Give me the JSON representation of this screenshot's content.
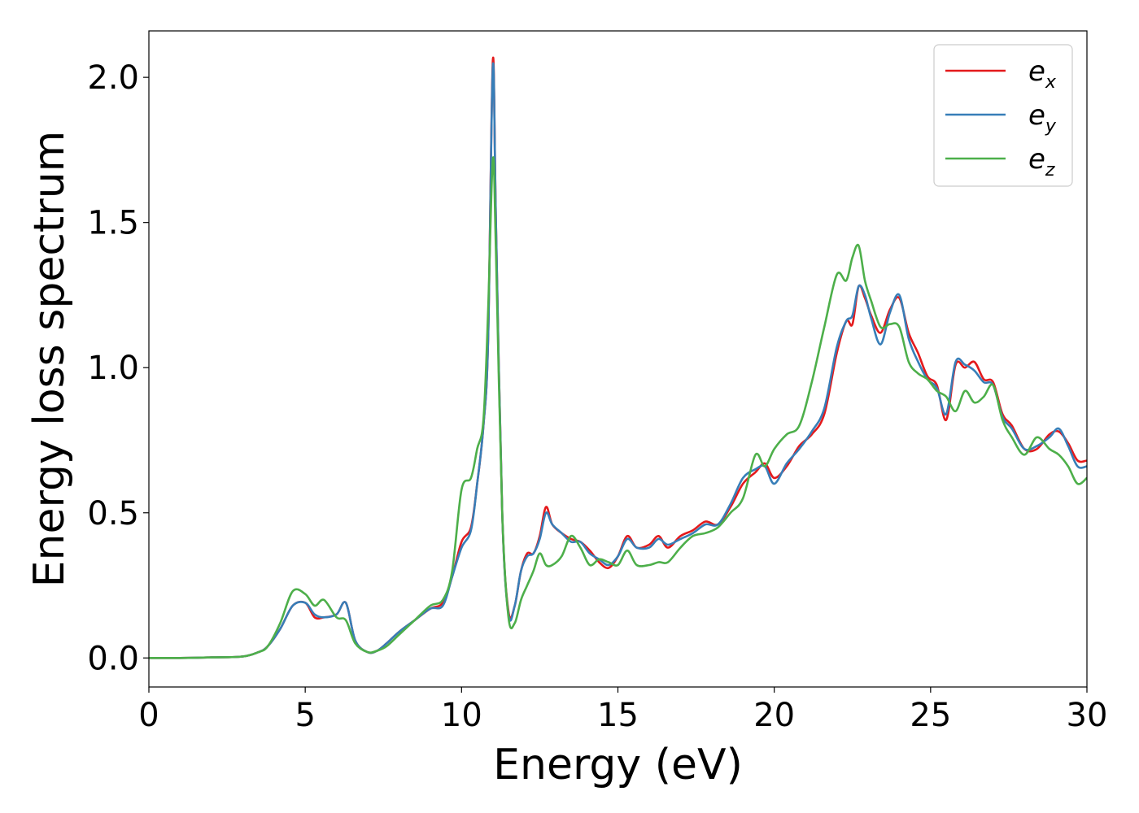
{
  "chart_data": {
    "type": "line",
    "xlabel": "Energy (eV)",
    "ylabel": "Energy loss spectrum",
    "xlim": [
      0,
      30
    ],
    "ylim": [
      -0.1,
      2.16
    ],
    "xticks": [
      0,
      5,
      10,
      15,
      20,
      25,
      30
    ],
    "xtick_labels": [
      "0",
      "5",
      "10",
      "15",
      "20",
      "25",
      "30"
    ],
    "yticks": [
      0.0,
      0.5,
      1.0,
      1.5,
      2.0
    ],
    "ytick_labels": [
      "0.0",
      "0.5",
      "1.0",
      "1.5",
      "2.0"
    ],
    "grid": false,
    "legend_position": "top-right",
    "series": [
      {
        "name": "e_x",
        "legend_base": "e",
        "legend_sub": "x",
        "color": "#e41a1c",
        "x": [
          0,
          1,
          2,
          3,
          3.5,
          3.8,
          4.2,
          4.6,
          5.0,
          5.3,
          5.6,
          6.0,
          6.3,
          6.6,
          7.0,
          7.3,
          7.6,
          8.0,
          8.5,
          9.0,
          9.4,
          9.7,
          10.0,
          10.3,
          10.5,
          10.7,
          10.85,
          11.0,
          11.1,
          11.3,
          11.5,
          11.7,
          11.9,
          12.1,
          12.3,
          12.5,
          12.7,
          12.9,
          13.2,
          13.5,
          13.8,
          14.1,
          14.4,
          14.7,
          15.0,
          15.3,
          15.6,
          16.0,
          16.3,
          16.6,
          17.0,
          17.4,
          17.8,
          18.2,
          18.6,
          19.0,
          19.4,
          19.7,
          20.0,
          20.4,
          20.8,
          21.2,
          21.6,
          22.0,
          22.3,
          22.5,
          22.7,
          22.9,
          23.1,
          23.4,
          23.7,
          24.0,
          24.3,
          24.6,
          24.9,
          25.2,
          25.5,
          25.8,
          26.1,
          26.4,
          26.7,
          27.0,
          27.3,
          27.6,
          28.0,
          28.4,
          28.8,
          29.1,
          29.4,
          29.7,
          30.0
        ],
        "values": [
          0,
          0,
          0.002,
          0.005,
          0.02,
          0.04,
          0.1,
          0.18,
          0.19,
          0.14,
          0.14,
          0.15,
          0.19,
          0.06,
          0.02,
          0.025,
          0.05,
          0.09,
          0.13,
          0.17,
          0.19,
          0.28,
          0.4,
          0.45,
          0.6,
          0.8,
          1.1,
          2.06,
          1.5,
          0.5,
          0.16,
          0.18,
          0.3,
          0.36,
          0.36,
          0.42,
          0.52,
          0.46,
          0.43,
          0.41,
          0.4,
          0.37,
          0.33,
          0.31,
          0.35,
          0.42,
          0.38,
          0.39,
          0.42,
          0.38,
          0.42,
          0.44,
          0.47,
          0.46,
          0.52,
          0.6,
          0.64,
          0.67,
          0.62,
          0.66,
          0.73,
          0.77,
          0.84,
          1.05,
          1.16,
          1.15,
          1.28,
          1.24,
          1.18,
          1.12,
          1.2,
          1.24,
          1.12,
          1.05,
          0.97,
          0.94,
          0.82,
          1.01,
          1.0,
          1.02,
          0.96,
          0.95,
          0.84,
          0.8,
          0.72,
          0.72,
          0.77,
          0.78,
          0.74,
          0.68,
          0.68
        ]
      },
      {
        "name": "e_y",
        "legend_base": "e",
        "legend_sub": "y",
        "color": "#377eb8",
        "x": [
          0,
          1,
          2,
          3,
          3.5,
          3.8,
          4.2,
          4.6,
          5.0,
          5.3,
          5.6,
          6.0,
          6.3,
          6.6,
          7.0,
          7.3,
          7.6,
          8.0,
          8.5,
          9.0,
          9.4,
          9.7,
          10.0,
          10.3,
          10.5,
          10.7,
          10.85,
          11.0,
          11.1,
          11.3,
          11.5,
          11.7,
          11.9,
          12.1,
          12.3,
          12.5,
          12.7,
          12.9,
          13.2,
          13.5,
          13.8,
          14.1,
          14.4,
          14.7,
          15.0,
          15.3,
          15.6,
          16.0,
          16.3,
          16.6,
          17.0,
          17.4,
          17.8,
          18.2,
          18.6,
          19.0,
          19.4,
          19.7,
          20.0,
          20.4,
          20.8,
          21.2,
          21.6,
          22.0,
          22.3,
          22.5,
          22.7,
          22.9,
          23.1,
          23.4,
          23.7,
          24.0,
          24.3,
          24.6,
          24.9,
          25.2,
          25.5,
          25.8,
          26.1,
          26.4,
          26.7,
          27.0,
          27.3,
          27.6,
          28.0,
          28.4,
          28.8,
          29.1,
          29.4,
          29.7,
          30.0
        ],
        "values": [
          0,
          0,
          0.002,
          0.005,
          0.02,
          0.04,
          0.1,
          0.18,
          0.19,
          0.15,
          0.14,
          0.15,
          0.19,
          0.06,
          0.02,
          0.025,
          0.05,
          0.09,
          0.13,
          0.17,
          0.18,
          0.28,
          0.38,
          0.44,
          0.6,
          0.8,
          1.1,
          2.04,
          1.5,
          0.5,
          0.15,
          0.18,
          0.3,
          0.35,
          0.36,
          0.41,
          0.5,
          0.46,
          0.43,
          0.4,
          0.4,
          0.36,
          0.34,
          0.32,
          0.35,
          0.41,
          0.38,
          0.38,
          0.41,
          0.39,
          0.41,
          0.43,
          0.46,
          0.46,
          0.53,
          0.62,
          0.65,
          0.66,
          0.6,
          0.67,
          0.72,
          0.78,
          0.86,
          1.07,
          1.16,
          1.18,
          1.28,
          1.25,
          1.17,
          1.08,
          1.19,
          1.25,
          1.1,
          1.02,
          0.96,
          0.93,
          0.84,
          1.02,
          1.01,
          0.99,
          0.95,
          0.94,
          0.83,
          0.79,
          0.72,
          0.73,
          0.76,
          0.79,
          0.73,
          0.66,
          0.66
        ]
      },
      {
        "name": "e_z",
        "legend_base": "e",
        "legend_sub": "z",
        "color": "#4daf4a",
        "x": [
          0,
          1,
          2,
          3,
          3.5,
          3.8,
          4.2,
          4.6,
          5.0,
          5.3,
          5.6,
          6.0,
          6.3,
          6.6,
          7.0,
          7.3,
          7.6,
          8.0,
          8.5,
          9.0,
          9.4,
          9.7,
          10.0,
          10.3,
          10.5,
          10.7,
          10.85,
          11.0,
          11.1,
          11.3,
          11.5,
          11.7,
          11.9,
          12.1,
          12.3,
          12.5,
          12.7,
          12.9,
          13.2,
          13.5,
          13.8,
          14.1,
          14.4,
          14.7,
          15.0,
          15.3,
          15.6,
          16.0,
          16.3,
          16.6,
          17.0,
          17.4,
          17.8,
          18.2,
          18.6,
          19.0,
          19.4,
          19.7,
          20.0,
          20.4,
          20.8,
          21.2,
          21.6,
          22.0,
          22.3,
          22.5,
          22.7,
          22.9,
          23.1,
          23.4,
          23.7,
          24.0,
          24.3,
          24.6,
          24.9,
          25.2,
          25.5,
          25.8,
          26.1,
          26.4,
          26.7,
          27.0,
          27.3,
          27.6,
          28.0,
          28.4,
          28.8,
          29.1,
          29.4,
          29.7,
          30.0
        ],
        "values": [
          0,
          0,
          0.002,
          0.005,
          0.02,
          0.04,
          0.12,
          0.23,
          0.22,
          0.18,
          0.2,
          0.14,
          0.13,
          0.05,
          0.02,
          0.025,
          0.04,
          0.08,
          0.13,
          0.18,
          0.2,
          0.3,
          0.58,
          0.62,
          0.72,
          0.82,
          1.2,
          1.72,
          1.4,
          0.5,
          0.14,
          0.12,
          0.2,
          0.25,
          0.3,
          0.36,
          0.32,
          0.32,
          0.35,
          0.42,
          0.38,
          0.32,
          0.34,
          0.33,
          0.32,
          0.37,
          0.32,
          0.32,
          0.33,
          0.33,
          0.38,
          0.42,
          0.43,
          0.45,
          0.5,
          0.55,
          0.7,
          0.66,
          0.72,
          0.77,
          0.8,
          0.95,
          1.14,
          1.32,
          1.3,
          1.38,
          1.42,
          1.3,
          1.23,
          1.14,
          1.15,
          1.14,
          1.02,
          0.98,
          0.96,
          0.92,
          0.9,
          0.85,
          0.92,
          0.88,
          0.9,
          0.94,
          0.82,
          0.76,
          0.7,
          0.76,
          0.72,
          0.7,
          0.66,
          0.6,
          0.62
        ]
      }
    ]
  }
}
